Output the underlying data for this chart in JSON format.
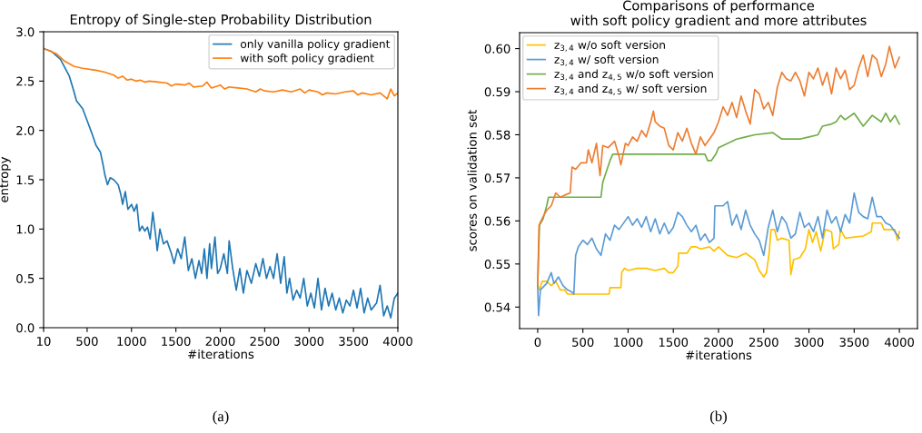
{
  "chart_data": [
    {
      "type": "line",
      "title": "Entropy of Single-step Probability Distribution",
      "xlabel": "#iterations",
      "ylabel": "entropy",
      "xlim": [
        10,
        4000
      ],
      "ylim": [
        0,
        3.0
      ],
      "xticks": [
        10,
        500,
        1000,
        1500,
        2000,
        2500,
        3000,
        3500,
        4000
      ],
      "yticks": [
        {
          "value": 0,
          "label": "0.0"
        },
        0.5,
        {
          "value": 1,
          "label": "1.0"
        },
        1.5,
        {
          "value": 2,
          "label": "2.0"
        },
        2.5,
        {
          "value": 3,
          "label": "3.0"
        }
      ],
      "grid": false,
      "legend": "top right",
      "annotations": [
        "(a)"
      ],
      "series": [
        {
          "name": "only vanilla policy gradient",
          "color": "#1f77b4",
          "x": [
            10,
            100,
            200,
            300,
            350,
            380,
            450,
            500,
            550,
            600,
            650,
            680,
            700,
            730,
            760,
            800,
            850,
            880,
            900,
            930,
            960,
            1000,
            1030,
            1060,
            1090,
            1120,
            1150,
            1180,
            1210,
            1240,
            1270,
            1290,
            1320,
            1360,
            1400,
            1450,
            1480,
            1520,
            1560,
            1600,
            1640,
            1680,
            1720,
            1760,
            1790,
            1820,
            1850,
            1880,
            1900,
            1940,
            1970,
            2000,
            2040,
            2080,
            2100,
            2140,
            2180,
            2220,
            2260,
            2300,
            2350,
            2400,
            2440,
            2480,
            2520,
            2560,
            2600,
            2640,
            2680,
            2720,
            2750,
            2780,
            2820,
            2860,
            2900,
            2940,
            2980,
            3020,
            3060,
            3100,
            3140,
            3180,
            3220,
            3260,
            3300,
            3340,
            3380,
            3420,
            3460,
            3500,
            3540,
            3580,
            3620,
            3660,
            3700,
            3760,
            3800,
            3840,
            3880,
            3920,
            3960,
            4000
          ],
          "values": [
            2.83,
            2.8,
            2.72,
            2.55,
            2.4,
            2.3,
            2.22,
            2.1,
            1.98,
            1.85,
            1.78,
            1.65,
            1.55,
            1.45,
            1.52,
            1.5,
            1.45,
            1.35,
            1.25,
            1.38,
            1.2,
            1.25,
            1.18,
            1.25,
            0.98,
            1.03,
            0.98,
            1.02,
            0.9,
            1.17,
            0.95,
            0.78,
            1.0,
            0.85,
            0.88,
            0.75,
            0.65,
            0.8,
            0.7,
            0.92,
            0.58,
            0.7,
            0.5,
            0.68,
            0.55,
            0.8,
            0.5,
            0.85,
            0.6,
            0.92,
            0.55,
            0.6,
            0.75,
            0.55,
            0.88,
            0.6,
            0.38,
            0.6,
            0.35,
            0.58,
            0.45,
            0.65,
            0.52,
            0.7,
            0.5,
            0.62,
            0.5,
            0.75,
            0.45,
            0.72,
            0.35,
            0.5,
            0.28,
            0.38,
            0.3,
            0.5,
            0.22,
            0.35,
            0.2,
            0.5,
            0.18,
            0.4,
            0.22,
            0.35,
            0.18,
            0.3,
            0.15,
            0.28,
            0.22,
            0.38,
            0.2,
            0.4,
            0.15,
            0.3,
            0.18,
            0.25,
            0.43,
            0.12,
            0.22,
            0.1,
            0.3,
            0.35
          ]
        },
        {
          "name": "with soft policy gradient",
          "color": "#ff7f0e",
          "x": [
            10,
            150,
            250,
            350,
            450,
            600,
            700,
            800,
            850,
            900,
            950,
            1000,
            1050,
            1100,
            1150,
            1200,
            1300,
            1400,
            1450,
            1500,
            1600,
            1650,
            1700,
            1800,
            1850,
            1900,
            2000,
            2050,
            2100,
            2200,
            2300,
            2400,
            2450,
            2500,
            2600,
            2700,
            2800,
            2900,
            2950,
            3000,
            3100,
            3150,
            3200,
            3300,
            3400,
            3500,
            3550,
            3600,
            3700,
            3800,
            3880,
            3920,
            3960,
            4000
          ],
          "values": [
            2.83,
            2.78,
            2.7,
            2.65,
            2.63,
            2.61,
            2.59,
            2.56,
            2.53,
            2.55,
            2.51,
            2.52,
            2.5,
            2.51,
            2.49,
            2.5,
            2.49,
            2.48,
            2.45,
            2.47,
            2.46,
            2.48,
            2.44,
            2.45,
            2.49,
            2.43,
            2.46,
            2.42,
            2.44,
            2.43,
            2.42,
            2.39,
            2.42,
            2.4,
            2.39,
            2.41,
            2.39,
            2.42,
            2.38,
            2.41,
            2.39,
            2.36,
            2.38,
            2.37,
            2.39,
            2.4,
            2.36,
            2.38,
            2.36,
            2.38,
            2.32,
            2.42,
            2.35,
            2.38
          ]
        }
      ]
    },
    {
      "type": "line",
      "title": "Comparisons of performance\nwith soft policy gradient and more attributes",
      "xlabel": "#iterations",
      "ylabel": "scores on validation set",
      "xlim": [
        -200,
        4200
      ],
      "ylim": [
        0.535,
        0.6037
      ],
      "xticks": [
        0,
        500,
        1000,
        1500,
        2000,
        2500,
        3000,
        3500,
        4000
      ],
      "yticks": [
        0.54,
        0.55,
        0.56,
        0.57,
        0.58,
        0.59,
        {
          "value": 0.6,
          "label": "0.60"
        }
      ],
      "grid": false,
      "legend": "top left",
      "annotations": [
        "(b)"
      ],
      "series": [
        {
          "name": "z$_{3,4}$ w/o soft version",
          "color": "#ffc000",
          "x": [
            0,
            20,
            50,
            100,
            150,
            200,
            250,
            300,
            330,
            400,
            790,
            800,
            920,
            930,
            960,
            1000,
            1100,
            1200,
            1300,
            1400,
            1450,
            1500,
            1550,
            1560,
            1650,
            1700,
            1750,
            1800,
            1900,
            1950,
            2000,
            2050,
            2100,
            2200,
            2300,
            2400,
            2450,
            2500,
            2530,
            2560,
            2580,
            2620,
            2650,
            2700,
            2780,
            2800,
            2830,
            2900,
            2960,
            3000,
            3040,
            3080,
            3130,
            3180,
            3250,
            3270,
            3330,
            3350,
            3400,
            3600,
            3690,
            3700,
            3800,
            3830,
            3950,
            3980,
            4000
          ],
          "values": [
            0.545,
            0.544,
            0.546,
            0.546,
            0.545,
            0.546,
            0.544,
            0.544,
            0.543,
            0.543,
            0.543,
            0.5445,
            0.5445,
            0.548,
            0.549,
            0.5485,
            0.549,
            0.549,
            0.5485,
            0.549,
            0.548,
            0.548,
            0.5495,
            0.5525,
            0.5525,
            0.554,
            0.554,
            0.5535,
            0.554,
            0.553,
            0.554,
            0.553,
            0.552,
            0.5515,
            0.5525,
            0.551,
            0.5485,
            0.547,
            0.548,
            0.5525,
            0.558,
            0.558,
            0.5555,
            0.556,
            0.5555,
            0.5475,
            0.551,
            0.5515,
            0.5535,
            0.558,
            0.555,
            0.5575,
            0.553,
            0.558,
            0.5575,
            0.5535,
            0.5545,
            0.558,
            0.556,
            0.5565,
            0.5575,
            0.5595,
            0.5595,
            0.558,
            0.558,
            0.5555,
            0.5575
          ]
        },
        {
          "name": "z$_{3,4}$ w/ soft version",
          "color": "#5b9bd5",
          "x": [
            0,
            10,
            30,
            100,
            150,
            180,
            230,
            280,
            330,
            380,
            400,
            420,
            450,
            500,
            550,
            600,
            650,
            700,
            750,
            800,
            850,
            900,
            1000,
            1050,
            1100,
            1150,
            1200,
            1250,
            1300,
            1350,
            1400,
            1450,
            1500,
            1550,
            1600,
            1650,
            1700,
            1750,
            1800,
            1850,
            1900,
            1950,
            1960,
            2000,
            2050,
            2100,
            2150,
            2200,
            2250,
            2300,
            2350,
            2400,
            2450,
            2500,
            2550,
            2600,
            2650,
            2700,
            2750,
            2800,
            2850,
            2900,
            2950,
            3000,
            3050,
            3100,
            3150,
            3200,
            3250,
            3300,
            3350,
            3400,
            3450,
            3500,
            3550,
            3600,
            3650,
            3700,
            3750,
            3800,
            3850,
            3900,
            3950,
            4000
          ],
          "values": [
            0.545,
            0.538,
            0.544,
            0.5455,
            0.548,
            0.5455,
            0.547,
            0.545,
            0.544,
            0.5435,
            0.543,
            0.552,
            0.554,
            0.5555,
            0.5545,
            0.556,
            0.5535,
            0.552,
            0.557,
            0.5555,
            0.559,
            0.558,
            0.561,
            0.559,
            0.5605,
            0.5585,
            0.561,
            0.5575,
            0.5605,
            0.557,
            0.5595,
            0.557,
            0.5585,
            0.562,
            0.561,
            0.559,
            0.5575,
            0.559,
            0.5555,
            0.557,
            0.555,
            0.556,
            0.5635,
            0.5635,
            0.5635,
            0.5645,
            0.559,
            0.5615,
            0.558,
            0.5625,
            0.559,
            0.557,
            0.5555,
            0.552,
            0.5585,
            0.5625,
            0.5575,
            0.561,
            0.5595,
            0.556,
            0.557,
            0.562,
            0.5585,
            0.5595,
            0.5575,
            0.561,
            0.556,
            0.5625,
            0.5595,
            0.561,
            0.5575,
            0.5615,
            0.5595,
            0.5665,
            0.562,
            0.561,
            0.5605,
            0.5655,
            0.561,
            0.561,
            0.5595,
            0.559,
            0.5575,
            0.556
          ]
        },
        {
          "name": "z$_{3,4}$ and z$_{4,5}$ w/o soft version",
          "color": "#70ad47",
          "x": [
            0,
            20,
            60,
            100,
            120,
            700,
            720,
            760,
            800,
            830,
            1850,
            1880,
            1920,
            1970,
            2000,
            2100,
            2200,
            2300,
            2400,
            2600,
            2700,
            2900,
            3000,
            3100,
            3150,
            3250,
            3300,
            3350,
            3400,
            3500,
            3600,
            3700,
            3800,
            3850,
            3900,
            3950,
            4000
          ],
          "values": [
            0.545,
            0.559,
            0.5605,
            0.5635,
            0.5655,
            0.5655,
            0.569,
            0.5715,
            0.574,
            0.5755,
            0.5755,
            0.574,
            0.574,
            0.5755,
            0.577,
            0.578,
            0.579,
            0.5795,
            0.58,
            0.5805,
            0.579,
            0.579,
            0.5795,
            0.58,
            0.582,
            0.5825,
            0.583,
            0.5845,
            0.5835,
            0.585,
            0.582,
            0.5845,
            0.583,
            0.585,
            0.583,
            0.5845,
            0.5825
          ]
        },
        {
          "name": "z$_{3,4}$ and z$_{4,5}$ w/ soft version",
          "color": "#ed7d31",
          "x": [
            0,
            15,
            60,
            100,
            150,
            200,
            250,
            300,
            360,
            380,
            420,
            480,
            540,
            560,
            600,
            650,
            690,
            720,
            780,
            850,
            900,
            920,
            970,
            1000,
            1050,
            1100,
            1150,
            1200,
            1250,
            1280,
            1300,
            1350,
            1400,
            1450,
            1500,
            1550,
            1600,
            1650,
            1700,
            1750,
            1800,
            1850,
            1900,
            1950,
            2000,
            2050,
            2100,
            2150,
            2200,
            2250,
            2300,
            2350,
            2400,
            2450,
            2500,
            2550,
            2600,
            2650,
            2700,
            2750,
            2800,
            2850,
            2900,
            2950,
            3000,
            3050,
            3100,
            3150,
            3200,
            3250,
            3300,
            3350,
            3400,
            3450,
            3500,
            3550,
            3600,
            3650,
            3700,
            3750,
            3800,
            3850,
            3890,
            3950,
            4000
          ],
          "values": [
            0.545,
            0.559,
            0.561,
            0.5625,
            0.5635,
            0.5665,
            0.5655,
            0.566,
            0.5665,
            0.5725,
            0.572,
            0.5735,
            0.5735,
            0.5765,
            0.5735,
            0.578,
            0.5705,
            0.5775,
            0.577,
            0.5785,
            0.575,
            0.573,
            0.578,
            0.5775,
            0.5795,
            0.5785,
            0.581,
            0.5795,
            0.583,
            0.5855,
            0.583,
            0.582,
            0.5815,
            0.5775,
            0.5765,
            0.5805,
            0.5785,
            0.5815,
            0.578,
            0.5755,
            0.5795,
            0.5775,
            0.579,
            0.5805,
            0.583,
            0.5865,
            0.5845,
            0.5875,
            0.584,
            0.589,
            0.5855,
            0.5825,
            0.5905,
            0.5895,
            0.586,
            0.5875,
            0.5845,
            0.591,
            0.5945,
            0.593,
            0.5925,
            0.5945,
            0.5925,
            0.589,
            0.5945,
            0.593,
            0.5955,
            0.5915,
            0.5945,
            0.5895,
            0.5955,
            0.593,
            0.595,
            0.5905,
            0.5915,
            0.5955,
            0.5985,
            0.5935,
            0.5985,
            0.5975,
            0.5935,
            0.5965,
            0.6005,
            0.5955,
            0.598
          ]
        }
      ]
    }
  ]
}
